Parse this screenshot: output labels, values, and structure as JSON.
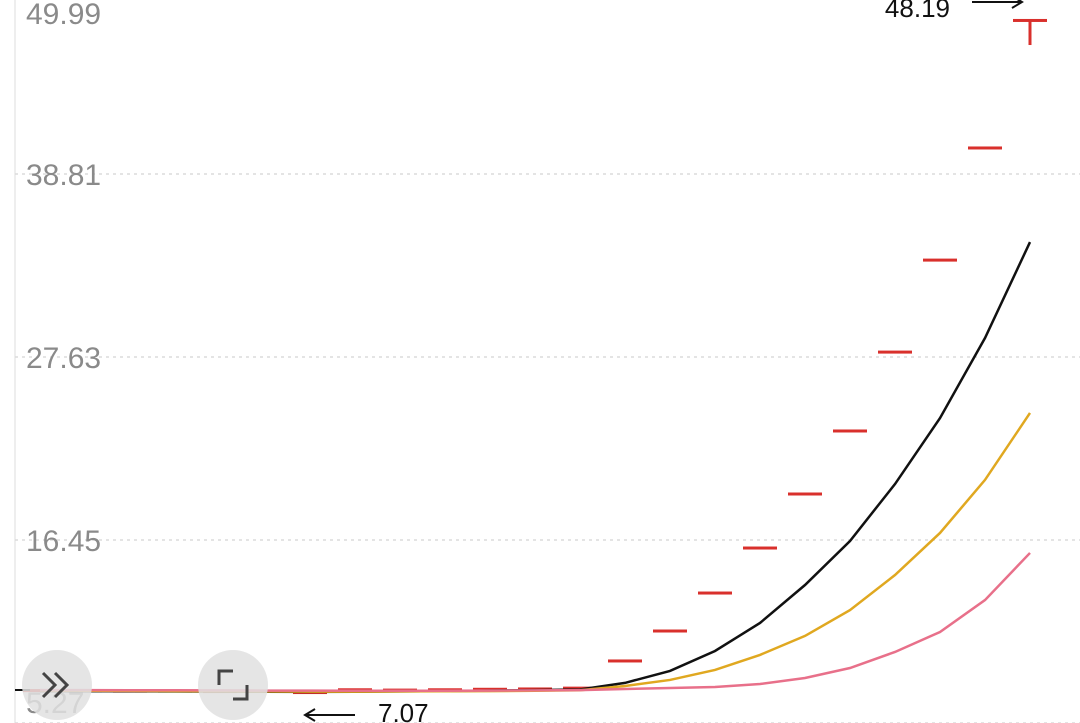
{
  "chart_data": {
    "type": "candlestick",
    "ylim": [
      5.27,
      49.99
    ],
    "yticks": [
      5.27,
      16.45,
      27.63,
      38.81,
      49.99
    ],
    "grid": true,
    "up_color": "#d9302c",
    "down_color": "#1e8c3a",
    "open": [
      7.22,
      7.24,
      7.2,
      7.22,
      7.17,
      7.2,
      7.08,
      7.15,
      7.25,
      7.28,
      7.3,
      7.33,
      7.36,
      9.06,
      10.89,
      13.21,
      15.96,
      19.26,
      23.11,
      27.93,
      33.55,
      40.4,
      48.19
    ],
    "high": [
      7.28,
      7.26,
      7.24,
      7.24,
      7.21,
      7.22,
      7.14,
      7.32,
      7.29,
      7.31,
      7.34,
      7.36,
      7.41,
      9.06,
      10.89,
      13.21,
      15.96,
      19.26,
      23.11,
      27.93,
      33.55,
      40.4,
      48.19
    ],
    "low": [
      7.18,
      7.18,
      7.18,
      7.14,
      7.15,
      7.11,
      7.07,
      7.13,
      7.23,
      7.26,
      7.28,
      7.31,
      7.34,
      9.06,
      10.89,
      13.21,
      15.96,
      19.26,
      23.11,
      27.93,
      33.55,
      40.4,
      46.69
    ],
    "close": [
      7.25,
      7.2,
      7.22,
      7.16,
      7.19,
      7.13,
      7.13,
      7.3,
      7.28,
      7.3,
      7.33,
      7.35,
      7.4,
      9.06,
      10.89,
      13.21,
      15.96,
      19.26,
      23.11,
      27.93,
      33.55,
      40.4,
      48.19
    ],
    "lines": [
      {
        "color": "#111111",
        "values": [
          7.22,
          7.22,
          7.21,
          7.2,
          7.19,
          7.18,
          7.17,
          7.18,
          7.2,
          7.22,
          7.25,
          7.28,
          7.32,
          7.72,
          8.45,
          9.67,
          11.38,
          13.7,
          16.39,
          19.87,
          23.9,
          28.79,
          34.65
        ]
      },
      {
        "color": "#e0a820",
        "values": [
          7.25,
          7.24,
          7.23,
          7.22,
          7.21,
          7.2,
          7.19,
          7.19,
          7.2,
          7.21,
          7.22,
          7.24,
          7.27,
          7.53,
          7.9,
          8.51,
          9.43,
          10.59,
          12.17,
          14.31,
          16.88,
          20.12,
          24.21
        ]
      },
      {
        "color": "#e8708a",
        "values": [
          7.28,
          7.28,
          7.27,
          7.27,
          7.26,
          7.25,
          7.25,
          7.24,
          7.24,
          7.24,
          7.25,
          7.26,
          7.28,
          7.35,
          7.41,
          7.47,
          7.65,
          8.02,
          8.63,
          9.61,
          10.83,
          12.78,
          15.66
        ]
      }
    ],
    "high_label": 48.19,
    "low_label": 7.07
  }
}
